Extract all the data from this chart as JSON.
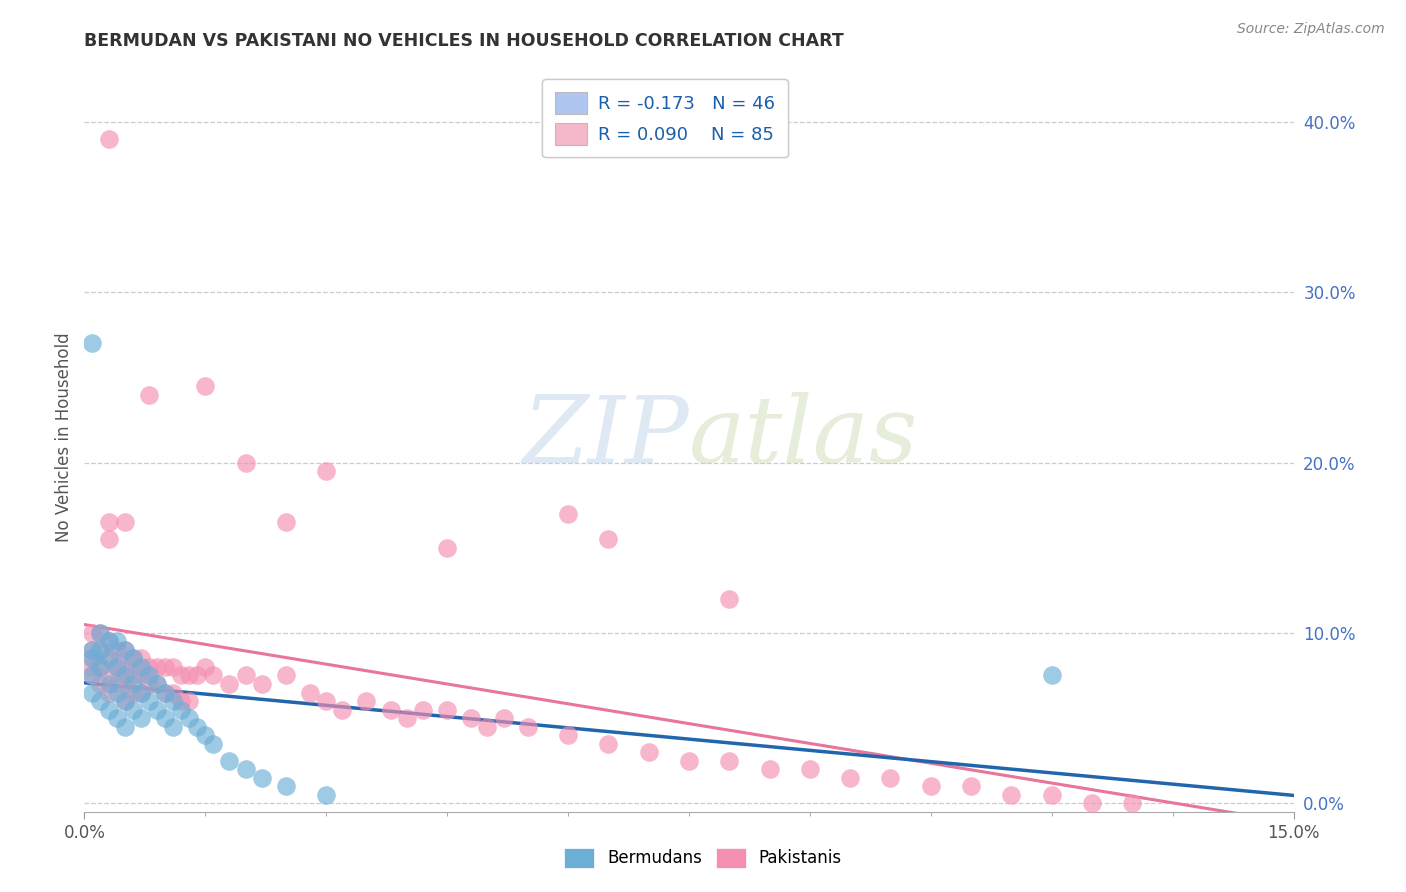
{
  "title": "BERMUDAN VS PAKISTANI NO VEHICLES IN HOUSEHOLD CORRELATION CHART",
  "source": "Source: ZipAtlas.com",
  "ylabel": "No Vehicles in Household",
  "ytick_labels": [
    "0.0%",
    "10.0%",
    "20.0%",
    "30.0%",
    "40.0%"
  ],
  "ytick_values": [
    0.0,
    0.1,
    0.2,
    0.3,
    0.4
  ],
  "xlim": [
    0.0,
    0.15
  ],
  "ylim": [
    -0.005,
    0.435
  ],
  "watermark_zip": "ZIP",
  "watermark_atlas": "atlas",
  "legend_entries": [
    {
      "label": "R = -0.173   N = 46",
      "color": "#aec6f0"
    },
    {
      "label": "R = 0.090    N = 85",
      "color": "#f4b8c8"
    }
  ],
  "bermudan_color": "#6baed6",
  "pakistani_color": "#f48fb1",
  "bermudan_line_color": "#2166ac",
  "pakistani_line_color": "#e8759a",
  "background_color": "#ffffff",
  "grid_color": "#cccccc",
  "title_color": "#333333",
  "bermudan_x": [
    0.001,
    0.001,
    0.001,
    0.001,
    0.002,
    0.002,
    0.002,
    0.002,
    0.003,
    0.003,
    0.003,
    0.003,
    0.004,
    0.004,
    0.004,
    0.004,
    0.005,
    0.005,
    0.005,
    0.005,
    0.006,
    0.006,
    0.006,
    0.007,
    0.007,
    0.007,
    0.008,
    0.008,
    0.009,
    0.009,
    0.01,
    0.01,
    0.011,
    0.011,
    0.012,
    0.013,
    0.014,
    0.015,
    0.016,
    0.018,
    0.02,
    0.022,
    0.025,
    0.03,
    0.12,
    0.001
  ],
  "bermudan_y": [
    0.09,
    0.085,
    0.075,
    0.065,
    0.1,
    0.09,
    0.08,
    0.06,
    0.095,
    0.085,
    0.07,
    0.055,
    0.095,
    0.08,
    0.065,
    0.05,
    0.09,
    0.075,
    0.06,
    0.045,
    0.085,
    0.07,
    0.055,
    0.08,
    0.065,
    0.05,
    0.075,
    0.06,
    0.07,
    0.055,
    0.065,
    0.05,
    0.06,
    0.045,
    0.055,
    0.05,
    0.045,
    0.04,
    0.035,
    0.025,
    0.02,
    0.015,
    0.01,
    0.005,
    0.075,
    0.27
  ],
  "pakistani_x": [
    0.001,
    0.001,
    0.001,
    0.001,
    0.001,
    0.002,
    0.002,
    0.002,
    0.002,
    0.003,
    0.003,
    0.003,
    0.003,
    0.004,
    0.004,
    0.004,
    0.005,
    0.005,
    0.005,
    0.005,
    0.006,
    0.006,
    0.006,
    0.007,
    0.007,
    0.007,
    0.008,
    0.008,
    0.009,
    0.009,
    0.01,
    0.01,
    0.011,
    0.011,
    0.012,
    0.012,
    0.013,
    0.013,
    0.014,
    0.015,
    0.016,
    0.018,
    0.02,
    0.022,
    0.025,
    0.028,
    0.03,
    0.032,
    0.035,
    0.038,
    0.04,
    0.042,
    0.045,
    0.048,
    0.05,
    0.052,
    0.055,
    0.06,
    0.065,
    0.07,
    0.075,
    0.08,
    0.085,
    0.09,
    0.095,
    0.1,
    0.105,
    0.11,
    0.115,
    0.12,
    0.125,
    0.13,
    0.003,
    0.03,
    0.065,
    0.005,
    0.025,
    0.045,
    0.06,
    0.08,
    0.003,
    0.008,
    0.015,
    0.02,
    0.003
  ],
  "pakistani_y": [
    0.1,
    0.09,
    0.085,
    0.08,
    0.075,
    0.1,
    0.09,
    0.08,
    0.07,
    0.095,
    0.085,
    0.075,
    0.065,
    0.09,
    0.08,
    0.07,
    0.09,
    0.08,
    0.07,
    0.06,
    0.085,
    0.075,
    0.065,
    0.085,
    0.075,
    0.065,
    0.08,
    0.07,
    0.08,
    0.07,
    0.08,
    0.065,
    0.08,
    0.065,
    0.075,
    0.06,
    0.075,
    0.06,
    0.075,
    0.08,
    0.075,
    0.07,
    0.075,
    0.07,
    0.075,
    0.065,
    0.06,
    0.055,
    0.06,
    0.055,
    0.05,
    0.055,
    0.055,
    0.05,
    0.045,
    0.05,
    0.045,
    0.04,
    0.035,
    0.03,
    0.025,
    0.025,
    0.02,
    0.02,
    0.015,
    0.015,
    0.01,
    0.01,
    0.005,
    0.005,
    0.0,
    0.0,
    0.155,
    0.195,
    0.155,
    0.165,
    0.165,
    0.15,
    0.17,
    0.12,
    0.39,
    0.24,
    0.245,
    0.2,
    0.165
  ]
}
